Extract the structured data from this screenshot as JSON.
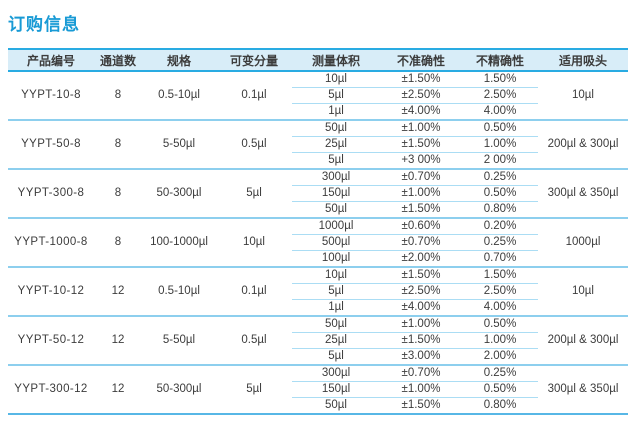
{
  "page": {
    "title": "订购信息"
  },
  "colors": {
    "title_accent": "#189ad5",
    "header_border": "#29abe2",
    "header_background": "#d8edf8",
    "thin_row_line": "#abddf4",
    "group_separator_line": "#8dcfee",
    "table_bottom_line": "#57b7e6",
    "text": "#3c3c3c"
  },
  "table": {
    "headers": [
      "产品编号",
      "通道数",
      "规格",
      "可变分量",
      "测量体积",
      "不准确性",
      "不精确性",
      "适用吸头"
    ],
    "groups": [
      {
        "product": "YYPT-10-8",
        "channels": "8",
        "spec": "0.5-10µl",
        "increment": "0.1µl",
        "tip": "10µl",
        "rows": [
          [
            "10µl",
            "±1.50%",
            "1.50%"
          ],
          [
            "5µl",
            "±2.50%",
            "2.50%"
          ],
          [
            "1µl",
            "±4.00%",
            "4.00%"
          ]
        ]
      },
      {
        "product": "YYPT-50-8",
        "channels": "8",
        "spec": "5-50µl",
        "increment": "0.5µl",
        "tip": "200µl & 300µl",
        "rows": [
          [
            "50µl",
            "±1.00%",
            "0.50%"
          ],
          [
            "25µl",
            "±1.50%",
            "1.00%"
          ],
          [
            "5µl",
            "+3 00%",
            "2 00%"
          ]
        ]
      },
      {
        "product": "YYPT-300-8",
        "channels": "8",
        "spec": "50-300µl",
        "increment": "5µl",
        "tip": "300µl & 350µl",
        "rows": [
          [
            "300µl",
            "±0.70%",
            "0.25%"
          ],
          [
            "150µl",
            "±1.00%",
            "0.50%"
          ],
          [
            "50µl",
            "±1.50%",
            "0.80%"
          ]
        ]
      },
      {
        "product": "YYPT-1000-8",
        "channels": "8",
        "spec": "100-1000µl",
        "increment": "10µl",
        "tip": "1000µl",
        "rows": [
          [
            "1000µl",
            "±0.60%",
            "0.20%"
          ],
          [
            "500µl",
            "±0.70%",
            "0.25%"
          ],
          [
            "100µl",
            "±2.00%",
            "0.70%"
          ]
        ]
      },
      {
        "product": "YYPT-10-12",
        "channels": "12",
        "spec": "0.5-10µl",
        "increment": "0.1µl",
        "tip": "10µl",
        "rows": [
          [
            "10µl",
            "±1.50%",
            "1.50%"
          ],
          [
            "5µl",
            "±2.50%",
            "2.50%"
          ],
          [
            "1µl",
            "±4.00%",
            "4.00%"
          ]
        ]
      },
      {
        "product": "YYPT-50-12",
        "channels": "12",
        "spec": "5-50µl",
        "increment": "0.5µl",
        "tip": "200µl & 300µl",
        "rows": [
          [
            "50µl",
            "±1.00%",
            "0.50%"
          ],
          [
            "25µl",
            "±1.50%",
            "1.00%"
          ],
          [
            "5µl",
            "±3.00%",
            "2.00%"
          ]
        ]
      },
      {
        "product": "YYPT-300-12",
        "channels": "12",
        "spec": "50-300µl",
        "increment": "5µl",
        "tip": "300µl & 350µl",
        "rows": [
          [
            "300µl",
            "±0.70%",
            "0.25%"
          ],
          [
            "150µl",
            "±1.00%",
            "0.50%"
          ],
          [
            "50µl",
            "±1.50%",
            "0.80%"
          ]
        ]
      }
    ]
  }
}
